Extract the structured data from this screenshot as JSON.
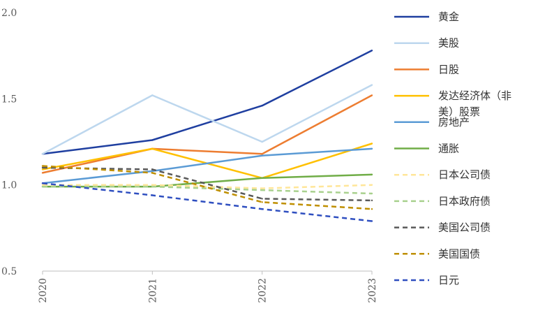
{
  "chart_data": {
    "type": "line",
    "title": "",
    "xlabel": "",
    "ylabel": "",
    "x": [
      "2020",
      "2021",
      "2022",
      "2023"
    ],
    "ylim": [
      0.5,
      2.0
    ],
    "yticks": [
      "0.5",
      "1.0",
      "1.5",
      "2.0"
    ],
    "grid": false,
    "legend_position": "right",
    "series": [
      {
        "name": "黄金",
        "values": [
          1.18,
          1.26,
          1.46,
          1.78
        ],
        "color": "#1f3fa0",
        "dashed": false
      },
      {
        "name": "美股",
        "values": [
          1.18,
          1.52,
          1.25,
          1.58
        ],
        "color": "#bdd7ee",
        "dashed": false
      },
      {
        "name": "日股",
        "values": [
          1.07,
          1.21,
          1.18,
          1.52
        ],
        "color": "#ed7d31",
        "dashed": false
      },
      {
        "name": "发达经济体（非美）股票",
        "values": [
          1.09,
          1.21,
          1.04,
          1.24
        ],
        "color": "#ffc000",
        "dashed": false
      },
      {
        "name": "房地产",
        "values": [
          1.01,
          1.08,
          1.17,
          1.21
        ],
        "color": "#5b9bd5",
        "dashed": false
      },
      {
        "name": "通胀",
        "values": [
          0.99,
          0.99,
          1.04,
          1.06
        ],
        "color": "#70ad47",
        "dashed": false
      },
      {
        "name": "日本公司债",
        "values": [
          1.0,
          1.0,
          0.98,
          1.0
        ],
        "color": "#ffe699",
        "dashed": true
      },
      {
        "name": "日本政府债",
        "values": [
          0.99,
          0.99,
          0.97,
          0.95
        ],
        "color": "#a9d18e",
        "dashed": true
      },
      {
        "name": "美国公司债",
        "values": [
          1.1,
          1.09,
          0.92,
          0.91
        ],
        "color": "#595959",
        "dashed": true
      },
      {
        "name": "美国国债",
        "values": [
          1.11,
          1.07,
          0.9,
          0.86
        ],
        "color": "#bf8f00",
        "dashed": true
      },
      {
        "name": "日元",
        "values": [
          1.01,
          0.94,
          0.86,
          0.79
        ],
        "color": "#2f4fc0",
        "dashed": true
      }
    ]
  },
  "legend": {
    "labels": [
      "黄金",
      "美股",
      "日股",
      [
        "发达经济体（非",
        "美）股票"
      ],
      "房地产",
      "通胀",
      "日本公司债",
      "日本政府债",
      "美国公司债",
      "美国国债",
      "日元"
    ]
  }
}
